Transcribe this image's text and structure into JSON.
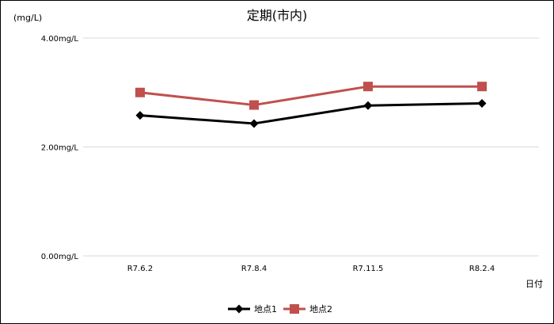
{
  "chart_data": {
    "type": "line",
    "title": "定期(市内)",
    "unit_label": "(mg/L)",
    "xlabel": "日付",
    "ylabel": "",
    "categories": [
      "R7.6.2",
      "R7.8.4",
      "R7.11.5",
      "R8.2.4"
    ],
    "ylim": [
      0,
      4
    ],
    "yticks": [
      0,
      2,
      4
    ],
    "ytick_labels": [
      "0.00mg/L",
      "2.00mg/L",
      "4.00mg/L"
    ],
    "grid": true,
    "legend_position": "bottom",
    "series": [
      {
        "name": "地点1",
        "values": [
          2.58,
          2.43,
          2.76,
          2.8
        ],
        "color": "#000000",
        "marker": "diamond"
      },
      {
        "name": "地点2",
        "values": [
          3.0,
          2.77,
          3.11,
          3.11
        ],
        "color": "#c0504d",
        "marker": "square"
      }
    ]
  }
}
